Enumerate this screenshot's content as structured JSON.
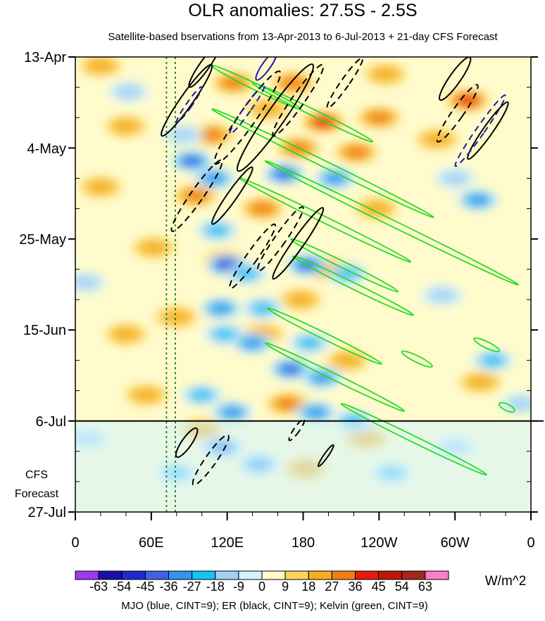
{
  "chart_data": {
    "type": "heatmap",
    "title": "OLR anomalies: 27.5S - 2.5S",
    "subtitle": "Satellite-based bservations from 13-Apr-2013 to 6-Jul-2013 + 21-day CFS Forecast",
    "x_tick_labels": [
      "0",
      "60E",
      "120E",
      "180",
      "120W",
      "60W",
      "0"
    ],
    "x_ticks_deg": [
      0,
      60,
      120,
      180,
      240,
      300,
      360
    ],
    "xlim_deg": [
      0,
      360
    ],
    "y_tick_labels": [
      "13-Apr",
      "4-May",
      "25-May",
      "15-Jun",
      "6-Jul",
      "27-Jul"
    ],
    "y_ticks_day": [
      0,
      21,
      42,
      63,
      84,
      105
    ],
    "ylim_day": [
      0,
      105
    ],
    "observation_end_label": "6-Jul",
    "observation_end_day": 84,
    "forecast_label_lines": [
      "CFS",
      "Forecast"
    ],
    "reference_lines_deg": [
      72,
      79
    ],
    "colorbar": {
      "levels": [
        -63,
        -54,
        -45,
        -36,
        -27,
        -18,
        -9,
        0,
        9,
        18,
        27,
        36,
        45,
        54,
        63
      ],
      "level_labels": [
        "-63",
        "-54",
        "-45",
        "-36",
        "-27",
        "-18",
        "-9",
        "0",
        "9",
        "18",
        "27",
        "36",
        "45",
        "54",
        "63"
      ],
      "colors": [
        "#9b3bf0",
        "#1a0fa8",
        "#1e2bd0",
        "#3d62e6",
        "#2f95ee",
        "#12c3f4",
        "#a3d0f6",
        "#d2f4fd",
        "#fffbcc",
        "#fdd45a",
        "#f5ad22",
        "#f27e14",
        "#e8190b",
        "#c0160a",
        "#a5271c",
        "#f97fc9"
      ],
      "units": "W/m^2"
    },
    "caption": "MJO (blue, CINT=9); ER (black, CINT=9); Kelvin (green, CINT=9)",
    "contour_colors": {
      "mjo": "#1a1aa8",
      "er": "#000000",
      "kelvin": "#22dd22"
    },
    "anomaly_features": [
      {
        "lon": 20,
        "day": 2,
        "value": 18
      },
      {
        "lon": 125,
        "day": 6,
        "value": 27
      },
      {
        "lon": 172,
        "day": 6,
        "value": 27
      },
      {
        "lon": 245,
        "day": 4,
        "value": 18
      },
      {
        "lon": 152,
        "day": 12,
        "value": 18
      },
      {
        "lon": 196,
        "day": 15,
        "value": 36
      },
      {
        "lon": 240,
        "day": 14,
        "value": 27
      },
      {
        "lon": 310,
        "day": 10,
        "value": 36
      },
      {
        "lon": 108,
        "day": 18,
        "value": 27
      },
      {
        "lon": 176,
        "day": 21,
        "value": 27
      },
      {
        "lon": 222,
        "day": 22,
        "value": 27
      },
      {
        "lon": 286,
        "day": 19,
        "value": 18
      },
      {
        "lon": 40,
        "day": 16,
        "value": 18
      },
      {
        "lon": 20,
        "day": 30,
        "value": 18
      },
      {
        "lon": 95,
        "day": 32,
        "value": 27
      },
      {
        "lon": 148,
        "day": 35,
        "value": 27
      },
      {
        "lon": 238,
        "day": 35,
        "value": 18
      },
      {
        "lon": 62,
        "day": 44,
        "value": 18
      },
      {
        "lon": 118,
        "day": 47,
        "value": 18
      },
      {
        "lon": 200,
        "day": 49,
        "value": 27
      },
      {
        "lon": 178,
        "day": 56,
        "value": 18
      },
      {
        "lon": 80,
        "day": 60,
        "value": 18
      },
      {
        "lon": 40,
        "day": 64,
        "value": 18
      },
      {
        "lon": 148,
        "day": 64,
        "value": 18
      },
      {
        "lon": 215,
        "day": 70,
        "value": 18
      },
      {
        "lon": 168,
        "day": 80,
        "value": 27
      },
      {
        "lon": 56,
        "day": 78,
        "value": 18
      },
      {
        "lon": 100,
        "day": 86,
        "value": 18
      },
      {
        "lon": 230,
        "day": 88,
        "value": 18
      },
      {
        "lon": 320,
        "day": 75,
        "value": 18
      },
      {
        "lon": 182,
        "day": 95,
        "value": 18
      },
      {
        "lon": 42,
        "day": 8,
        "value": -18
      },
      {
        "lon": 85,
        "day": 18,
        "value": -18
      },
      {
        "lon": 92,
        "day": 24,
        "value": -45
      },
      {
        "lon": 110,
        "day": 28,
        "value": -36
      },
      {
        "lon": 165,
        "day": 27,
        "value": -45
      },
      {
        "lon": 205,
        "day": 28,
        "value": -36
      },
      {
        "lon": 112,
        "day": 40,
        "value": -27
      },
      {
        "lon": 120,
        "day": 48,
        "value": -54
      },
      {
        "lon": 135,
        "day": 50,
        "value": -27
      },
      {
        "lon": 183,
        "day": 48,
        "value": -45
      },
      {
        "lon": 215,
        "day": 50,
        "value": -27
      },
      {
        "lon": 115,
        "day": 58,
        "value": -36
      },
      {
        "lon": 148,
        "day": 58,
        "value": -27
      },
      {
        "lon": 118,
        "day": 64,
        "value": -27
      },
      {
        "lon": 140,
        "day": 66,
        "value": -36
      },
      {
        "lon": 185,
        "day": 66,
        "value": -27
      },
      {
        "lon": 170,
        "day": 72,
        "value": -45
      },
      {
        "lon": 195,
        "day": 74,
        "value": -36
      },
      {
        "lon": 100,
        "day": 78,
        "value": -27
      },
      {
        "lon": 124,
        "day": 82,
        "value": -36
      },
      {
        "lon": 190,
        "day": 82,
        "value": -36
      },
      {
        "lon": 220,
        "day": 84,
        "value": -27
      },
      {
        "lon": 116,
        "day": 90,
        "value": -45
      },
      {
        "lon": 145,
        "day": 94,
        "value": -36
      },
      {
        "lon": 80,
        "day": 96,
        "value": -27
      },
      {
        "lon": 250,
        "day": 96,
        "value": -27
      },
      {
        "lon": 318,
        "day": 33,
        "value": -36
      },
      {
        "lon": 300,
        "day": 28,
        "value": -18
      },
      {
        "lon": 330,
        "day": 70,
        "value": -27
      },
      {
        "lon": 352,
        "day": 80,
        "value": -18
      },
      {
        "lon": 290,
        "day": 55,
        "value": -18
      },
      {
        "lon": 8,
        "day": 52,
        "value": -18
      },
      {
        "lon": 10,
        "day": 88,
        "value": -18
      },
      {
        "lon": 300,
        "day": 90,
        "value": -18
      }
    ],
    "kelvin_contours": [
      {
        "lon": 108,
        "day": 2,
        "len_deg": 70,
        "dlon_per_day": 7
      },
      {
        "lon": 140,
        "day": 6,
        "len_deg": 95,
        "dlon_per_day": 7
      },
      {
        "lon": 108,
        "day": 12,
        "len_deg": 175,
        "dlon_per_day": 7
      },
      {
        "lon": 150,
        "day": 24,
        "len_deg": 200,
        "dlon_per_day": 7
      },
      {
        "lon": 130,
        "day": 28,
        "len_deg": 135,
        "dlon_per_day": 7
      },
      {
        "lon": 170,
        "day": 42,
        "len_deg": 85,
        "dlon_per_day": 7
      },
      {
        "lon": 172,
        "day": 46,
        "len_deg": 95,
        "dlon_per_day": 7
      },
      {
        "lon": 152,
        "day": 58,
        "len_deg": 90,
        "dlon_per_day": 7
      },
      {
        "lon": 150,
        "day": 66,
        "len_deg": 110,
        "dlon_per_day": 7
      },
      {
        "lon": 210,
        "day": 80,
        "len_deg": 115,
        "dlon_per_day": 7
      },
      {
        "lon": 258,
        "day": 68,
        "len_deg": 24,
        "dlon_per_day": 7
      },
      {
        "lon": 315,
        "day": 65,
        "len_deg": 20,
        "dlon_per_day": 7
      },
      {
        "lon": 335,
        "day": 80,
        "len_deg": 12,
        "dlon_per_day": 7
      }
    ],
    "er_contours": [
      {
        "lon": 88,
        "day": 10,
        "half_deg": 9,
        "half_day": 10,
        "dashed": false
      },
      {
        "lon": 102,
        "day": 2,
        "half_deg": 7,
        "half_day": 6,
        "dashed": false
      },
      {
        "lon": 136,
        "day": 14,
        "half_deg": 12,
        "half_day": 13,
        "dashed": true
      },
      {
        "lon": 158,
        "day": 14,
        "half_deg": 13,
        "half_day": 15,
        "dashed": false
      },
      {
        "lon": 176,
        "day": 10,
        "half_deg": 9,
        "half_day": 10,
        "dashed": true
      },
      {
        "lon": 213,
        "day": 6,
        "half_deg": 6,
        "half_day": 7,
        "dashed": true
      },
      {
        "lon": 96,
        "day": 32,
        "half_deg": 9,
        "half_day": 10,
        "dashed": true
      },
      {
        "lon": 124,
        "day": 32,
        "half_deg": 7,
        "half_day": 8,
        "dashed": false
      },
      {
        "lon": 140,
        "day": 46,
        "half_deg": 8,
        "half_day": 9,
        "dashed": true
      },
      {
        "lon": 162,
        "day": 42,
        "half_deg": 8,
        "half_day": 9,
        "dashed": true
      },
      {
        "lon": 176,
        "day": 43,
        "half_deg": 8,
        "half_day": 10,
        "dashed": false
      },
      {
        "lon": 300,
        "day": 5,
        "half_deg": 8,
        "half_day": 6,
        "dashed": false
      },
      {
        "lon": 302,
        "day": 13,
        "half_deg": 8,
        "half_day": 8,
        "dashed": true
      },
      {
        "lon": 326,
        "day": 17,
        "half_deg": 7,
        "half_day": 8,
        "dashed": false
      },
      {
        "lon": 88,
        "day": 89,
        "half_deg": 7,
        "half_day": 4,
        "dashed": false
      },
      {
        "lon": 107,
        "day": 93,
        "half_deg": 8,
        "half_day": 7,
        "dashed": true
      },
      {
        "lon": 175,
        "day": 86,
        "half_deg": 4,
        "half_day": 3,
        "dashed": true
      },
      {
        "lon": 198,
        "day": 92,
        "half_deg": 3,
        "half_day": 3,
        "dashed": false
      }
    ],
    "mjo_contours": [
      {
        "lon": 151,
        "day": 2,
        "half_deg": 6,
        "half_day": 4,
        "dashed": false
      },
      {
        "lon": 136,
        "day": 12,
        "half_deg": 5,
        "half_day": 7,
        "dashed": true
      },
      {
        "lon": 90,
        "day": 11,
        "half_deg": 4,
        "half_day": 5,
        "dashed": true
      },
      {
        "lon": 320,
        "day": 17,
        "half_deg": 6,
        "half_day": 10,
        "dashed": true
      }
    ]
  }
}
